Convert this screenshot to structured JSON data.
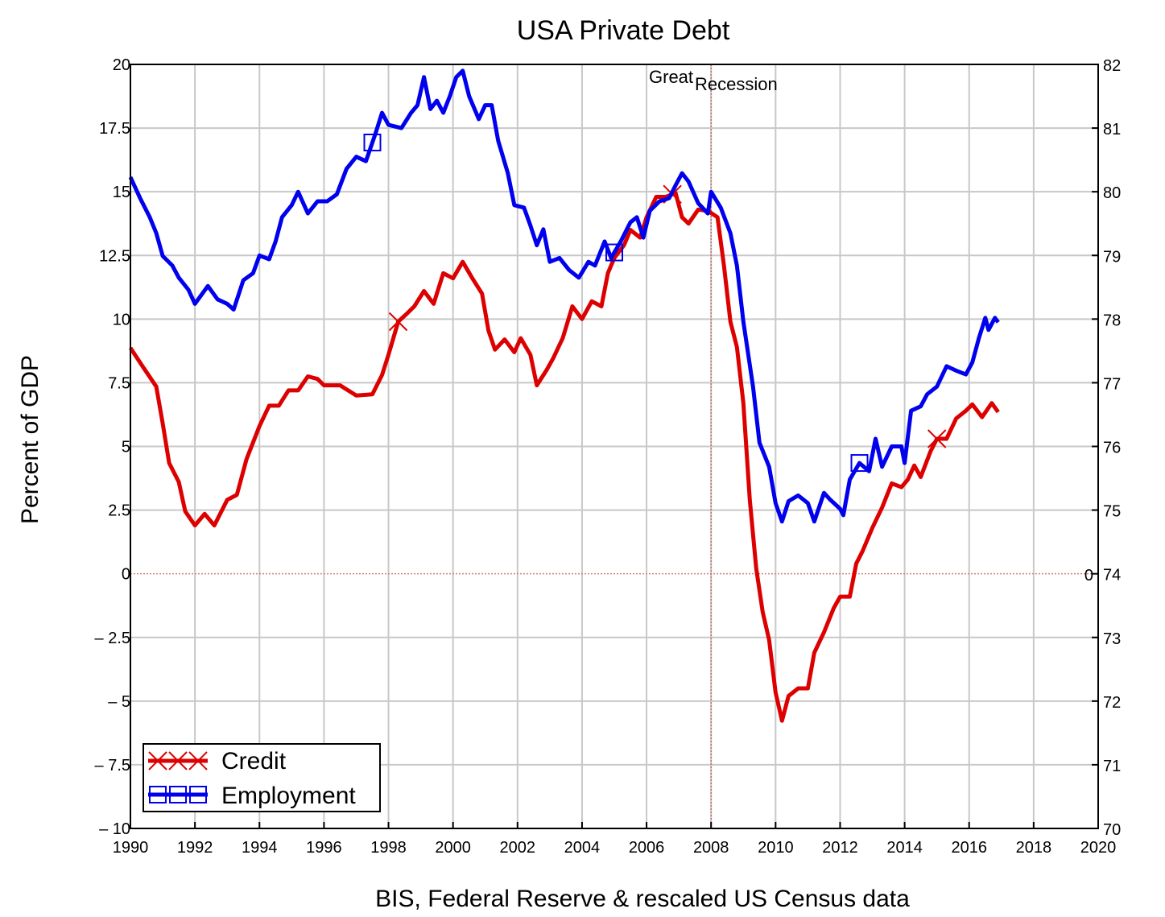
{
  "chart_data": {
    "type": "line",
    "title": "USA Private Debt",
    "ylabel": "Percent of GDP",
    "xlabel": "BIS, Federal Reserve & rescaled US Census data",
    "xlim": [
      1990,
      2020
    ],
    "ylim": [
      -10,
      20
    ],
    "y2lim": [
      70,
      82
    ],
    "grid": true,
    "legend_placement": "bottom-left",
    "x_ticks": [
      "1990",
      "1992",
      "1994",
      "1996",
      "1998",
      "2000",
      "2002",
      "2004",
      "2006",
      "2008",
      "2010",
      "2012",
      "2014",
      "2016",
      "2018",
      "2020"
    ],
    "y_ticks": [
      "20",
      "17.5",
      "15",
      "12.5",
      "10",
      "7.5",
      "5",
      "2.5",
      "0",
      "– 2.5",
      "– 5",
      "– 7.5",
      "– 10"
    ],
    "y2_ticks": [
      "82",
      "81",
      "80",
      "79",
      "78",
      "77",
      "76",
      "75",
      "74",
      "73",
      "72",
      "71",
      "70"
    ],
    "zero_line_label": "0",
    "annotation": {
      "word1": "Great",
      "word2": "Recession",
      "x": 2008
    },
    "series": [
      {
        "name": "Credit",
        "axis": "left",
        "color": "#dd0000",
        "marker": "x",
        "markers_x": [
          1998.3,
          2006.8,
          2015.0
        ],
        "x": [
          1990.0,
          1990.4,
          1990.8,
          1991.0,
          1991.2,
          1991.5,
          1991.7,
          1992.0,
          1992.3,
          1992.6,
          1993.0,
          1993.3,
          1993.6,
          1994.0,
          1994.3,
          1994.6,
          1994.9,
          1995.2,
          1995.5,
          1995.8,
          1996.0,
          1996.5,
          1997.0,
          1997.5,
          1997.8,
          1998.0,
          1998.3,
          1998.6,
          1998.8,
          1999.1,
          1999.4,
          1999.7,
          2000.0,
          2000.3,
          2000.6,
          2000.9,
          2001.1,
          2001.3,
          2001.6,
          2001.9,
          2002.1,
          2002.4,
          2002.6,
          2002.9,
          2003.1,
          2003.4,
          2003.7,
          2004.0,
          2004.3,
          2004.6,
          2004.8,
          2005.0,
          2005.3,
          2005.5,
          2005.8,
          2006.0,
          2006.3,
          2006.6,
          2006.9,
          2007.1,
          2007.3,
          2007.6,
          2007.9,
          2008.2,
          2008.4,
          2008.6,
          2008.8,
          2009.0,
          2009.2,
          2009.4,
          2009.6,
          2009.8,
          2010.0,
          2010.2,
          2010.4,
          2010.7,
          2011.0,
          2011.2,
          2011.5,
          2011.8,
          2012.0,
          2012.3,
          2012.5,
          2012.7,
          2013.0,
          2013.3,
          2013.6,
          2013.9,
          2014.1,
          2014.3,
          2014.5,
          2014.8,
          2015.0,
          2015.3,
          2015.6,
          2015.9,
          2016.1,
          2016.4,
          2016.7,
          2016.9
        ],
        "y": [
          8.87,
          8.1,
          7.35,
          5.9,
          4.35,
          3.6,
          2.45,
          1.9,
          2.35,
          1.9,
          2.9,
          3.1,
          4.5,
          5.8,
          6.6,
          6.6,
          7.2,
          7.2,
          7.75,
          7.65,
          7.4,
          7.4,
          7.0,
          7.05,
          7.8,
          8.6,
          9.9,
          10.25,
          10.5,
          11.1,
          10.6,
          11.8,
          11.6,
          12.25,
          11.6,
          11.0,
          9.55,
          8.8,
          9.2,
          8.7,
          9.25,
          8.6,
          7.4,
          8.0,
          8.45,
          9.25,
          10.5,
          10.0,
          10.7,
          10.5,
          11.8,
          12.4,
          12.9,
          13.5,
          13.2,
          14.0,
          14.8,
          14.8,
          14.95,
          14.0,
          13.75,
          14.3,
          14.25,
          14.0,
          12.1,
          9.9,
          8.9,
          6.7,
          2.9,
          0.2,
          -1.5,
          -2.6,
          -4.66,
          -5.77,
          -4.8,
          -4.5,
          -4.5,
          -3.1,
          -2.3,
          -1.35,
          -0.9,
          -0.9,
          0.4,
          0.9,
          1.8,
          2.6,
          3.55,
          3.4,
          3.7,
          4.25,
          3.8,
          4.8,
          5.3,
          5.3,
          6.1,
          6.4,
          6.65,
          6.15,
          6.7,
          6.35
        ]
      },
      {
        "name": "Employment",
        "axis": "right",
        "color": "#0000ee",
        "marker": "square",
        "markers_x": [
          1997.5,
          2005.0,
          2012.6
        ],
        "x": [
          1990.0,
          1990.3,
          1990.6,
          1990.8,
          1991.0,
          1991.3,
          1991.5,
          1991.8,
          1992.0,
          1992.4,
          1992.7,
          1993.0,
          1993.2,
          1993.5,
          1993.8,
          1994.0,
          1994.3,
          1994.5,
          1994.7,
          1995.0,
          1995.2,
          1995.5,
          1995.8,
          1996.1,
          1996.4,
          1996.7,
          1997.0,
          1997.3,
          1997.6,
          1997.8,
          1998.0,
          1998.4,
          1998.7,
          1998.9,
          1999.1,
          1999.3,
          1999.5,
          1999.7,
          1999.9,
          2000.1,
          2000.3,
          2000.5,
          2000.8,
          2001.0,
          2001.2,
          2001.4,
          2001.7,
          2001.9,
          2002.2,
          2002.4,
          2002.6,
          2002.8,
          2003.0,
          2003.3,
          2003.6,
          2003.9,
          2004.2,
          2004.4,
          2004.7,
          2004.9,
          2005.2,
          2005.5,
          2005.7,
          2005.9,
          2006.1,
          2006.4,
          2006.7,
          2006.9,
          2007.1,
          2007.3,
          2007.6,
          2007.9,
          2008.0,
          2008.3,
          2008.6,
          2008.8,
          2009.0,
          2009.3,
          2009.5,
          2009.8,
          2010.0,
          2010.2,
          2010.4,
          2010.7,
          2011.0,
          2011.2,
          2011.5,
          2011.7,
          2012.0,
          2012.1,
          2012.3,
          2012.6,
          2012.9,
          2013.1,
          2013.3,
          2013.6,
          2013.9,
          2014.0,
          2014.2,
          2014.5,
          2014.7,
          2015.0,
          2015.3,
          2015.6,
          2015.9,
          2016.1,
          2016.3,
          2016.5,
          2016.6,
          2016.8,
          2016.9
        ],
        "y": [
          80.23,
          79.9,
          79.6,
          79.35,
          78.99,
          78.84,
          78.65,
          78.46,
          78.24,
          78.52,
          78.31,
          78.24,
          78.15,
          78.61,
          78.72,
          79.0,
          78.94,
          79.22,
          79.6,
          79.79,
          80.0,
          79.66,
          79.85,
          79.85,
          79.96,
          80.36,
          80.55,
          80.48,
          80.92,
          81.24,
          81.05,
          81.0,
          81.24,
          81.36,
          81.8,
          81.3,
          81.43,
          81.24,
          81.5,
          81.8,
          81.9,
          81.5,
          81.14,
          81.36,
          81.36,
          80.8,
          80.29,
          79.79,
          79.75,
          79.47,
          79.16,
          79.41,
          78.9,
          78.96,
          78.77,
          78.65,
          78.9,
          78.84,
          79.22,
          78.96,
          79.22,
          79.52,
          79.6,
          79.28,
          79.7,
          79.85,
          79.9,
          80.1,
          80.29,
          80.16,
          79.82,
          79.66,
          80.0,
          79.75,
          79.35,
          78.84,
          77.96,
          76.94,
          76.06,
          75.68,
          75.11,
          74.82,
          75.14,
          75.23,
          75.11,
          74.82,
          75.27,
          75.16,
          75.02,
          74.92,
          75.48,
          75.74,
          75.61,
          76.12,
          75.68,
          76.0,
          76.0,
          75.74,
          76.56,
          76.63,
          76.82,
          76.94,
          77.26,
          77.19,
          77.13,
          77.32,
          77.7,
          78.02,
          77.83,
          78.02,
          77.95
        ]
      }
    ]
  }
}
